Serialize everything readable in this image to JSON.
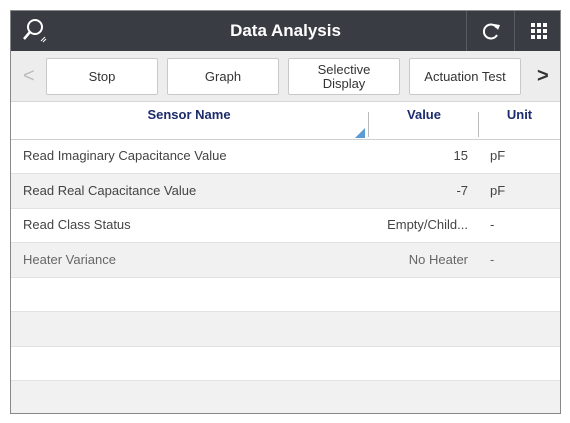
{
  "header": {
    "title": "Data Analysis"
  },
  "toolbar": {
    "buttons": [
      "Stop",
      "Graph",
      "Selective Display",
      "Actuation Test"
    ]
  },
  "table": {
    "columns": [
      "Sensor Name",
      "Value",
      "Unit"
    ],
    "rows": [
      [
        "Read Imaginary Capacitance Value",
        15,
        "pF"
      ],
      [
        "Read Real Capacitance Value",
        -7,
        "pF"
      ],
      [
        "Read Class Status",
        "Empty/Child...",
        "-"
      ],
      [
        "Heater Variance",
        "No Heater",
        "-"
      ]
    ]
  }
}
